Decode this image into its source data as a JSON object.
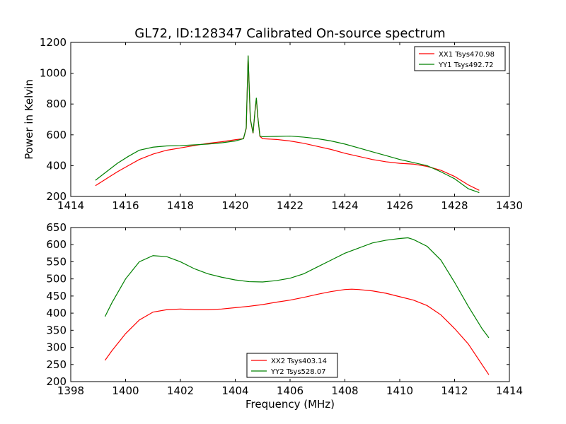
{
  "figure": {
    "title": "GL72, ID:128347 Calibrated On-source spectrum"
  },
  "chart_data": [
    {
      "type": "line",
      "ylabel": "Power in Kelvin",
      "xlabel": "",
      "xlim": [
        1414,
        1430
      ],
      "ylim": [
        200,
        1200
      ],
      "xticks": [
        1414,
        1416,
        1418,
        1420,
        1422,
        1424,
        1426,
        1428,
        1430
      ],
      "yticks": [
        200,
        400,
        600,
        800,
        1000,
        1200
      ],
      "legend_position": "upper right",
      "series": [
        {
          "name": "XX1 Tsys470.98",
          "color": "#ff0000",
          "x": [
            1414.9,
            1415.3,
            1415.7,
            1416.1,
            1416.5,
            1417.0,
            1417.5,
            1418.0,
            1418.5,
            1419.0,
            1419.5,
            1420.0,
            1420.3,
            1420.4,
            1420.47,
            1420.55,
            1420.65,
            1420.72,
            1420.77,
            1420.82,
            1420.9,
            1421.0,
            1421.5,
            1422.0,
            1422.5,
            1423.0,
            1423.5,
            1424.0,
            1424.5,
            1425.0,
            1425.5,
            1426.0,
            1426.5,
            1427.0,
            1427.5,
            1428.0,
            1428.5,
            1428.9
          ],
          "values": [
            270,
            315,
            360,
            400,
            440,
            475,
            500,
            515,
            530,
            545,
            555,
            568,
            575,
            640,
            1110,
            700,
            610,
            750,
            835,
            720,
            590,
            575,
            570,
            560,
            545,
            525,
            505,
            480,
            460,
            440,
            425,
            415,
            410,
            395,
            370,
            330,
            275,
            240
          ]
        },
        {
          "name": "YY1 Tsys492.72",
          "color": "#008000",
          "x": [
            1414.9,
            1415.3,
            1415.7,
            1416.1,
            1416.5,
            1417.0,
            1417.5,
            1418.0,
            1418.5,
            1419.0,
            1419.5,
            1420.0,
            1420.3,
            1420.4,
            1420.47,
            1420.55,
            1420.65,
            1420.72,
            1420.77,
            1420.82,
            1420.9,
            1421.0,
            1421.5,
            1422.0,
            1422.5,
            1423.0,
            1423.5,
            1424.0,
            1424.5,
            1425.0,
            1425.5,
            1426.0,
            1426.5,
            1427.0,
            1427.5,
            1428.0,
            1428.5,
            1428.9
          ],
          "values": [
            305,
            360,
            415,
            460,
            500,
            520,
            528,
            530,
            535,
            540,
            548,
            560,
            575,
            645,
            1115,
            705,
            612,
            755,
            840,
            722,
            592,
            588,
            590,
            592,
            585,
            575,
            560,
            540,
            515,
            490,
            465,
            440,
            420,
            400,
            360,
            315,
            250,
            225
          ]
        }
      ]
    },
    {
      "type": "line",
      "ylabel": "",
      "xlabel": "Frequency (MHz)",
      "xlim": [
        1398,
        1414
      ],
      "ylim": [
        200,
        650
      ],
      "xticks": [
        1398,
        1400,
        1402,
        1404,
        1406,
        1408,
        1410,
        1412,
        1414
      ],
      "yticks": [
        200,
        250,
        300,
        350,
        400,
        450,
        500,
        550,
        600,
        650
      ],
      "legend_position": "lower center",
      "series": [
        {
          "name": "XX2 Tsys403.14",
          "color": "#ff0000",
          "x": [
            1399.25,
            1399.5,
            1400.0,
            1400.5,
            1401.0,
            1401.5,
            1402.0,
            1402.5,
            1403.0,
            1403.5,
            1404.0,
            1404.5,
            1405.0,
            1405.5,
            1406.0,
            1406.5,
            1407.0,
            1407.5,
            1408.0,
            1408.25,
            1408.5,
            1409.0,
            1409.5,
            1410.0,
            1410.5,
            1411.0,
            1411.5,
            1412.0,
            1412.5,
            1413.0,
            1413.25
          ],
          "values": [
            262,
            290,
            340,
            380,
            403,
            410,
            412,
            410,
            410,
            412,
            416,
            420,
            425,
            432,
            438,
            446,
            455,
            463,
            469,
            470,
            469,
            465,
            458,
            448,
            438,
            422,
            395,
            355,
            310,
            250,
            220
          ]
        },
        {
          "name": "YY2 Tsys528.07",
          "color": "#008000",
          "x": [
            1399.25,
            1399.5,
            1400.0,
            1400.5,
            1401.0,
            1401.5,
            1402.0,
            1402.5,
            1403.0,
            1403.5,
            1404.0,
            1404.5,
            1405.0,
            1405.5,
            1406.0,
            1406.5,
            1407.0,
            1407.5,
            1408.0,
            1408.5,
            1409.0,
            1409.5,
            1410.0,
            1410.3,
            1410.5,
            1411.0,
            1411.5,
            1412.0,
            1412.5,
            1413.0,
            1413.25
          ],
          "values": [
            390,
            430,
            500,
            550,
            568,
            565,
            550,
            530,
            515,
            505,
            497,
            492,
            491,
            495,
            502,
            515,
            535,
            555,
            575,
            590,
            605,
            613,
            618,
            620,
            615,
            595,
            555,
            490,
            420,
            355,
            328
          ]
        }
      ]
    }
  ]
}
